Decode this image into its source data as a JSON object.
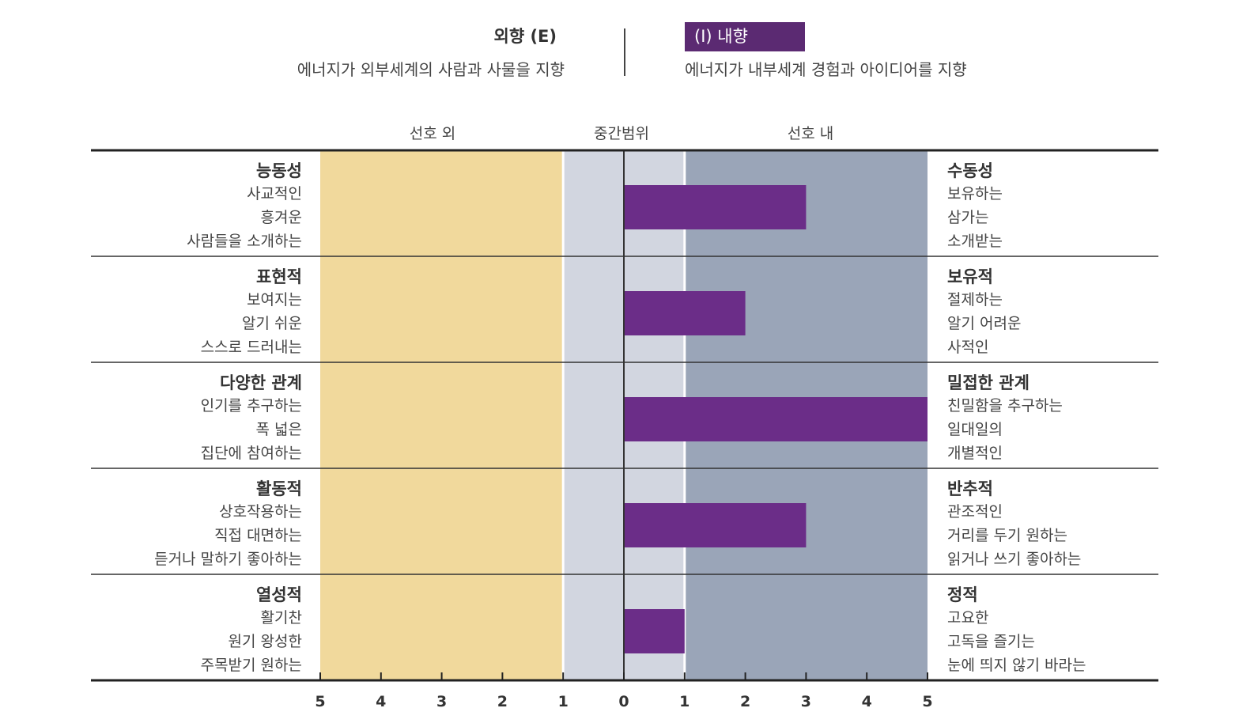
{
  "header": {
    "left_title": "외향 (E)",
    "left_desc": "에너지가 외부세계의 사람과 사물을 지향",
    "right_badge": "(I) 내향",
    "right_desc": "에너지가 내부세계 경험과 아이디어를 지향"
  },
  "range_labels": {
    "outside": "선호 외",
    "middle": "중간범위",
    "inside": "선호 내"
  },
  "colors": {
    "outside_zone": "#f1d99c",
    "middle_zone": "#d2d6e0",
    "inside_zone": "#9aa5b8",
    "bar": "#6b2d88",
    "badge": "#5b2a72"
  },
  "chart_data": {
    "type": "bar",
    "orientation": "horizontal",
    "xlim": [
      -5,
      5
    ],
    "ticks": [
      "5",
      "4",
      "3",
      "2",
      "1",
      "0",
      "1",
      "2",
      "3",
      "4",
      "5"
    ],
    "zones": [
      {
        "name": "선호 외",
        "from": -5,
        "to": -1
      },
      {
        "name": "중간범위",
        "from": -1,
        "to": 1
      },
      {
        "name": "선호 내",
        "from": 1,
        "to": 5
      }
    ],
    "categories": [
      "능동성 / 수동성",
      "표현적 / 보유적",
      "다양한 관계 / 밀접한 관계",
      "활동적 / 반추적",
      "열성적 / 정적"
    ],
    "values": [
      3,
      2,
      5,
      3,
      1
    ],
    "rows": [
      {
        "left_title": "능동성",
        "left_items": [
          "사교적인",
          "흥겨운",
          "사람들을 소개하는"
        ],
        "right_title": "수동성",
        "right_items": [
          "보유하는",
          "삼가는",
          "소개받는"
        ],
        "value": 3
      },
      {
        "left_title": "표현적",
        "left_items": [
          "보여지는",
          "알기 쉬운",
          "스스로 드러내는"
        ],
        "right_title": "보유적",
        "right_items": [
          "절제하는",
          "알기 어려운",
          "사적인"
        ],
        "value": 2
      },
      {
        "left_title": "다양한 관계",
        "left_items": [
          "인기를 추구하는",
          "폭 넓은",
          "집단에 참여하는"
        ],
        "right_title": "밀접한 관계",
        "right_items": [
          "친밀함을 추구하는",
          "일대일의",
          "개별적인"
        ],
        "value": 5
      },
      {
        "left_title": "활동적",
        "left_items": [
          "상호작용하는",
          "직접 대면하는",
          "듣거나 말하기 좋아하는"
        ],
        "right_title": "반추적",
        "right_items": [
          "관조적인",
          "거리를 두기 원하는",
          "읽거나 쓰기 좋아하는"
        ],
        "value": 3
      },
      {
        "left_title": "열성적",
        "left_items": [
          "활기찬",
          "원기 왕성한",
          "주목받기 원하는"
        ],
        "right_title": "정적",
        "right_items": [
          "고요한",
          "고독을 즐기는",
          "눈에 띄지 않기 바라는"
        ],
        "value": 1
      }
    ]
  }
}
